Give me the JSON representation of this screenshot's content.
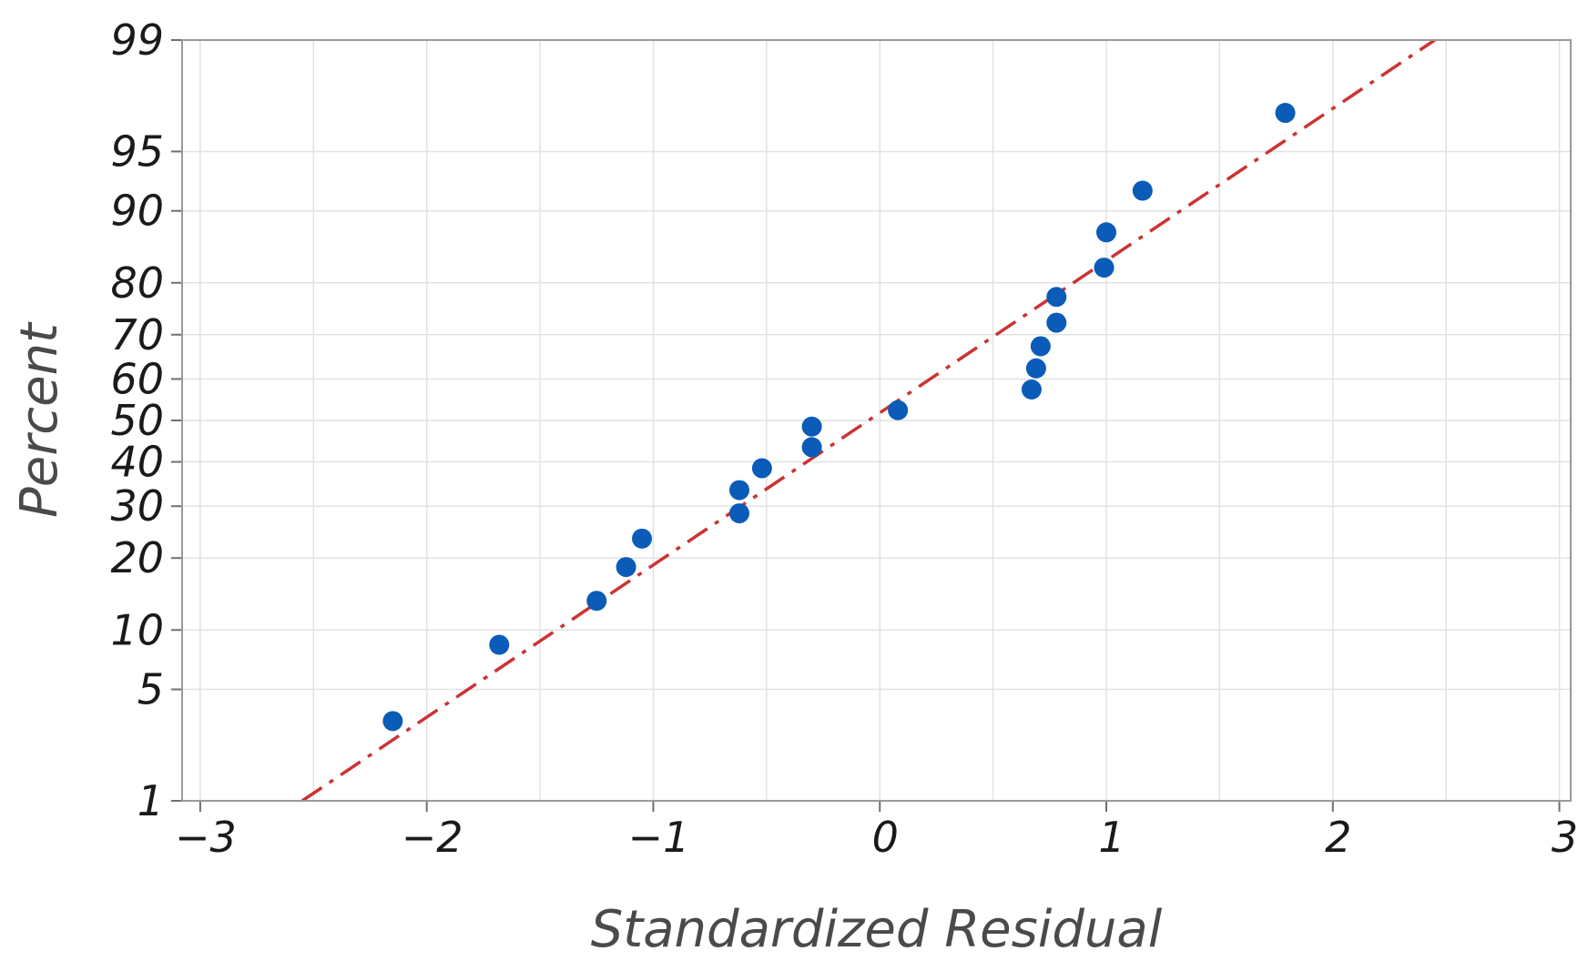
{
  "chart_data": {
    "type": "scatter",
    "xlabel": "Standardized Residual",
    "ylabel": "Percent",
    "xlim": [
      -3,
      3
    ],
    "x_ticks": [
      -3,
      -2,
      -1,
      0,
      1,
      2,
      3
    ],
    "x_tick_labels": [
      "−3",
      "−2",
      "−1",
      "0",
      "1",
      "2",
      "3"
    ],
    "y_scale": "normal-probability",
    "ylim": [
      1,
      99
    ],
    "y_ticks": [
      1,
      5,
      10,
      20,
      30,
      40,
      50,
      60,
      70,
      80,
      90,
      95,
      99
    ],
    "y_tick_labels": [
      "1",
      "5",
      "10",
      "20",
      "30",
      "40",
      "50",
      "60",
      "70",
      "80",
      "90",
      "95",
      "99"
    ],
    "grid": true,
    "series": [
      {
        "points": [
          {
            "x": -2.15,
            "y": 3.3
          },
          {
            "x": -1.68,
            "y": 8.5
          },
          {
            "x": -1.25,
            "y": 13.5
          },
          {
            "x": -1.12,
            "y": 18.5
          },
          {
            "x": -1.05,
            "y": 23.5
          },
          {
            "x": -0.62,
            "y": 28.5
          },
          {
            "x": -0.62,
            "y": 33.5
          },
          {
            "x": -0.52,
            "y": 38.5
          },
          {
            "x": -0.3,
            "y": 43.5
          },
          {
            "x": -0.3,
            "y": 48.5
          },
          {
            "x": 0.08,
            "y": 52.5
          },
          {
            "x": 0.67,
            "y": 57.5
          },
          {
            "x": 0.69,
            "y": 62.5
          },
          {
            "x": 0.71,
            "y": 67.5
          },
          {
            "x": 0.78,
            "y": 72.5
          },
          {
            "x": 0.78,
            "y": 77.5
          },
          {
            "x": 0.99,
            "y": 82.5
          },
          {
            "x": 1.0,
            "y": 87.5
          },
          {
            "x": 1.16,
            "y": 92.0
          },
          {
            "x": 1.79,
            "y": 97.0
          }
        ]
      }
    ],
    "fit_line": {
      "points": [
        {
          "x": -2.55,
          "y": 1
        },
        {
          "x": 2.45,
          "y": 99
        }
      ]
    },
    "colors": {
      "points": "#0a5cb8",
      "fit_line": "#cc3333",
      "grid": "#e2e2e2",
      "frame": "#9a9a9a"
    }
  }
}
